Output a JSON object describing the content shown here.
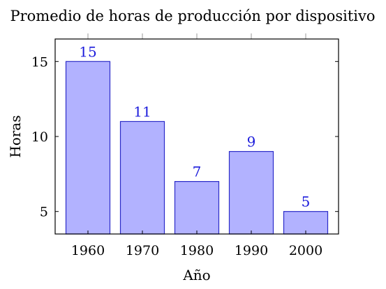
{
  "chart_data": {
    "type": "bar",
    "title": "Promedio de horas de producción por dispositivo",
    "xlabel": "Año",
    "ylabel": "Horas",
    "categories": [
      "1960",
      "1970",
      "1980",
      "1990",
      "2000"
    ],
    "values": [
      15,
      11,
      7,
      9,
      5
    ],
    "yticks": [
      5,
      10,
      15
    ],
    "ylim": [
      3.5,
      16.5
    ],
    "grid": false,
    "legend": "none",
    "colors": {
      "bar_fill": "#b2b2ff",
      "bar_stroke": "#2b2bc8",
      "data_label": "#1a1adb"
    }
  }
}
